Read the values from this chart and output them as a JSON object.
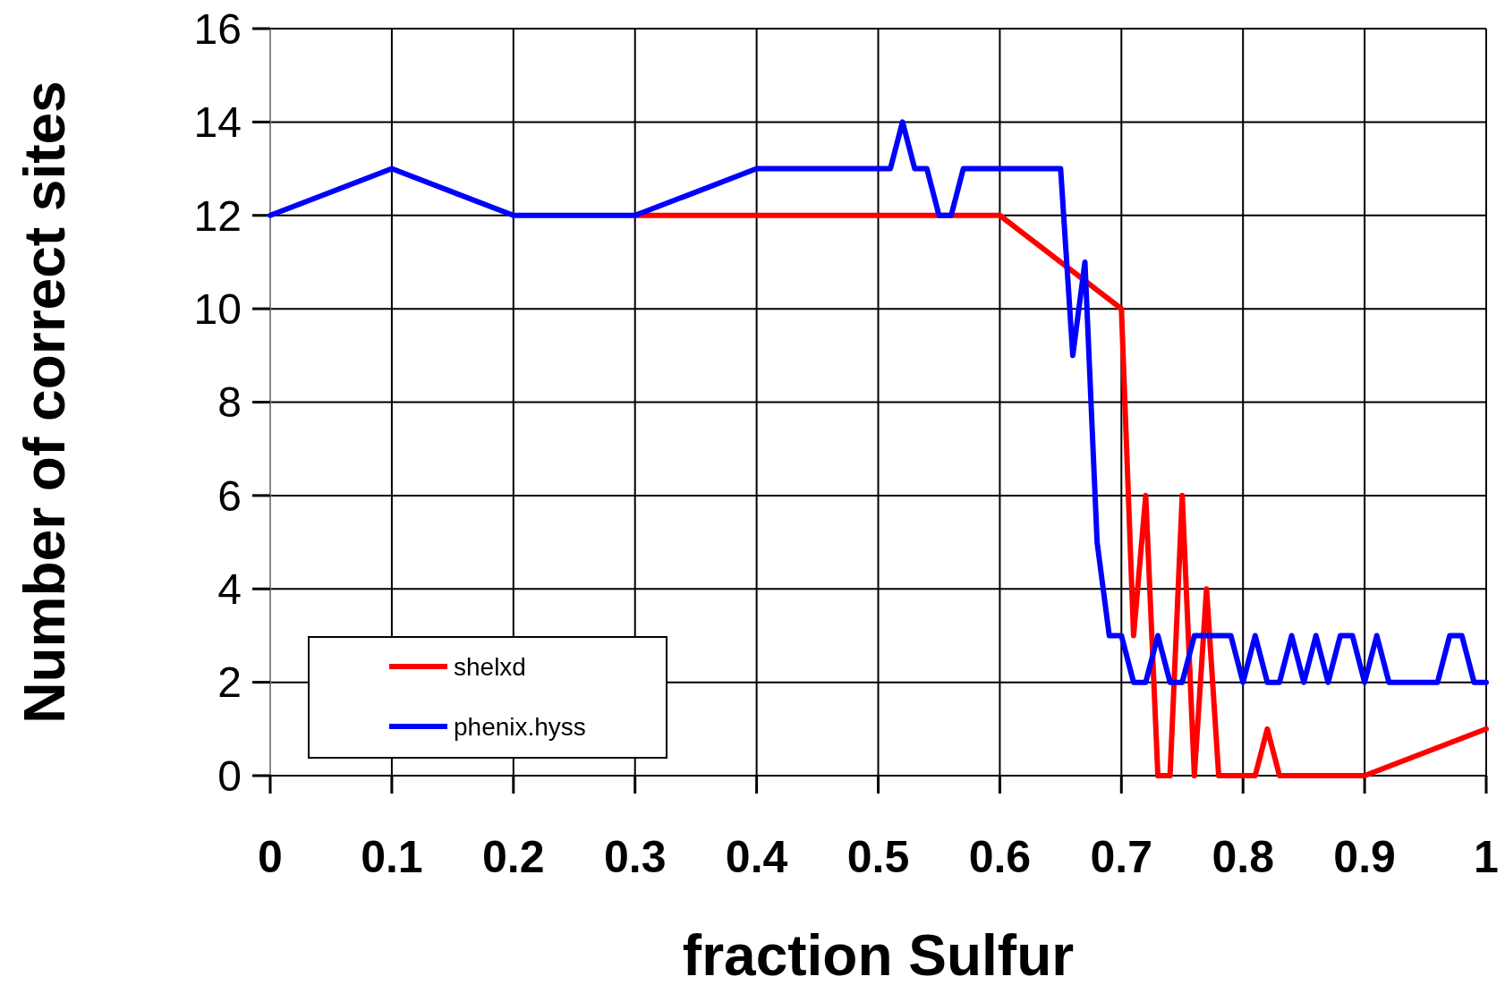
{
  "chart_data": {
    "type": "line",
    "xlabel": "fraction Sulfur",
    "ylabel": "Number of correct sites",
    "xlim": [
      0,
      1
    ],
    "ylim": [
      0,
      16
    ],
    "xticks": [
      0,
      0.1,
      0.2,
      0.3,
      0.4,
      0.5,
      0.6,
      0.7,
      0.8,
      0.9,
      1
    ],
    "yticks": [
      0,
      2,
      4,
      6,
      8,
      10,
      12,
      14,
      16
    ],
    "grid": true,
    "legend": "bottom left",
    "marker": "none",
    "series": [
      {
        "name": "shelxd",
        "color": "#ff0000",
        "x": [
          0.3,
          0.4,
          0.5,
          0.6,
          0.7,
          0.71,
          0.72,
          0.73,
          0.74,
          0.75,
          0.76,
          0.77,
          0.78,
          0.79,
          0.8,
          0.81,
          0.82,
          0.83,
          0.9,
          1
        ],
        "values": [
          12,
          12,
          12,
          12,
          10,
          3,
          6,
          0,
          0,
          6,
          0,
          4,
          0,
          0,
          0,
          0,
          1,
          0,
          0,
          1
        ]
      },
      {
        "name": "phenix.hyss",
        "color": "#0000ff",
        "x": [
          0,
          0.1,
          0.2,
          0.3,
          0.4,
          0.5,
          0.51,
          0.52,
          0.53,
          0.54,
          0.55,
          0.56,
          0.57,
          0.6,
          0.65,
          0.66,
          0.67,
          0.68,
          0.69,
          0.7,
          0.71,
          0.72,
          0.73,
          0.74,
          0.75,
          0.76,
          0.77,
          0.78,
          0.79,
          0.8,
          0.81,
          0.82,
          0.83,
          0.84,
          0.85,
          0.86,
          0.87,
          0.88,
          0.89,
          0.9,
          0.91,
          0.92,
          0.96,
          0.97,
          0.98,
          0.99,
          1
        ],
        "values": [
          12,
          13,
          12,
          12,
          13,
          13,
          13,
          14,
          13,
          13,
          12,
          12,
          13,
          13,
          13,
          9,
          11,
          5,
          3,
          3,
          2,
          2,
          3,
          2,
          2,
          3,
          3,
          3,
          3,
          2,
          3,
          2,
          2,
          3,
          2,
          3,
          2,
          3,
          3,
          2,
          3,
          2,
          2,
          3,
          3,
          2,
          2
        ]
      }
    ]
  }
}
